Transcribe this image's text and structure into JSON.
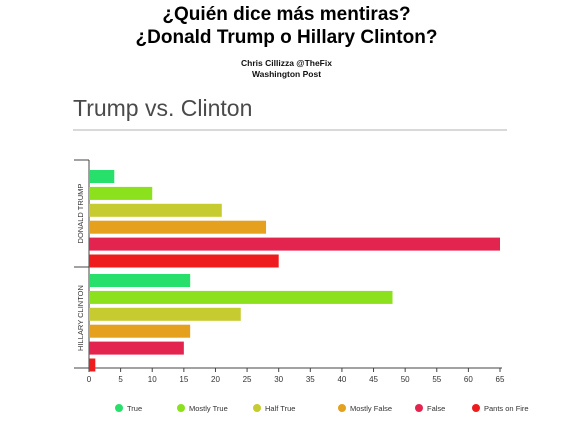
{
  "header": {
    "line1": "¿Quién dice más mentiras?",
    "line2": "¿Donald Trump o Hillary Clinton?",
    "credit1": "Chris Cillizza @TheFix",
    "credit2": "Washington Post"
  },
  "chart_data": {
    "type": "bar",
    "orientation": "horizontal",
    "title": "Trump vs. Clinton",
    "groups": [
      "DONALD TRUMP",
      "HILLARY CLINTON"
    ],
    "categories": [
      "True",
      "Mostly True",
      "Half True",
      "Mostly False",
      "False",
      "Pants on Fire"
    ],
    "colors": [
      "#27e06b",
      "#8be11c",
      "#c6cb2f",
      "#e5a01e",
      "#e3244f",
      "#ee1c1c"
    ],
    "series": [
      {
        "group": "DONALD TRUMP",
        "values": [
          4,
          10,
          21,
          28,
          65,
          30
        ]
      },
      {
        "group": "HILLARY CLINTON",
        "values": [
          16,
          48,
          24,
          16,
          15,
          1
        ]
      }
    ],
    "xticks": [
      0,
      5,
      10,
      15,
      20,
      25,
      30,
      35,
      40,
      45,
      50,
      55,
      60,
      65
    ],
    "xlim": [
      0,
      65
    ],
    "legend_position": "bottom",
    "grid": false
  }
}
